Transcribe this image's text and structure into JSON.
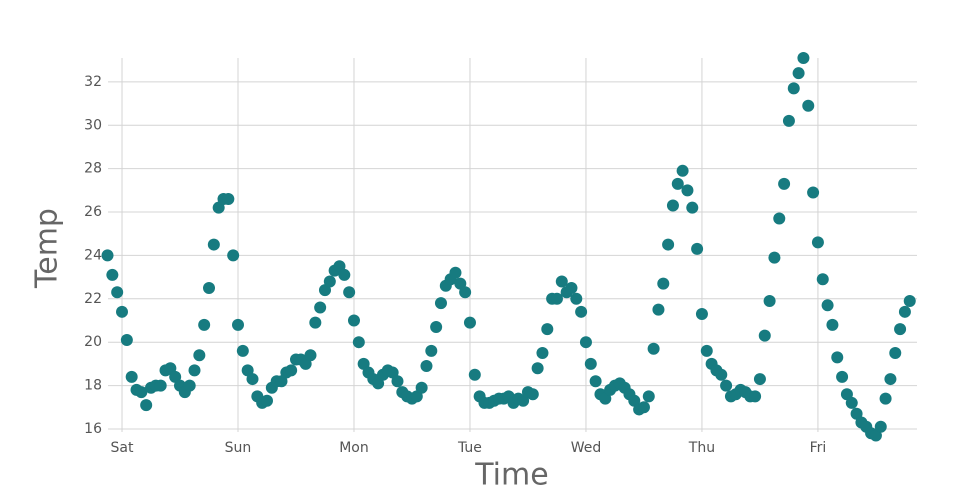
{
  "chart_data": {
    "type": "scatter",
    "x_label": "Time",
    "y_label": "Temp",
    "color": "#177b80",
    "grid": true,
    "xlim": [
      -2.9,
      164.5
    ],
    "ylim": [
      15.86,
      33.1
    ],
    "xticks": [
      {
        "value": 0,
        "label": "Sat"
      },
      {
        "value": 24,
        "label": "Sun"
      },
      {
        "value": 48,
        "label": "Mon"
      },
      {
        "value": 72,
        "label": "Tue"
      },
      {
        "value": 96,
        "label": "Wed"
      },
      {
        "value": 120,
        "label": "Thu"
      },
      {
        "value": 144,
        "label": "Fri"
      }
    ],
    "yticks": [
      16,
      18,
      20,
      22,
      24,
      26,
      28,
      30,
      32
    ],
    "x": [
      -3,
      -2,
      -1,
      0,
      1,
      2,
      3,
      4,
      5,
      6,
      7,
      8,
      9,
      10,
      11,
      12,
      13,
      14,
      15,
      16,
      17,
      18,
      19,
      20,
      21,
      22,
      23,
      24,
      25,
      26,
      27,
      28,
      29,
      30,
      31,
      32,
      33,
      34,
      35,
      36,
      37,
      38,
      39,
      40,
      41,
      42,
      43,
      44,
      45,
      46,
      47,
      48,
      49,
      50,
      51,
      52,
      53,
      54,
      55,
      56,
      57,
      58,
      59,
      60,
      61,
      62,
      63,
      64,
      65,
      66,
      67,
      68,
      69,
      70,
      71,
      72,
      73,
      74,
      75,
      76,
      77,
      78,
      79,
      80,
      81,
      82,
      83,
      84,
      85,
      86,
      87,
      88,
      89,
      90,
      91,
      92,
      93,
      94,
      95,
      96,
      97,
      98,
      99,
      100,
      101,
      102,
      103,
      104,
      105,
      106,
      107,
      108,
      109,
      110,
      111,
      112,
      113,
      114,
      115,
      116,
      117,
      118,
      119,
      120,
      121,
      122,
      123,
      124,
      125,
      126,
      127,
      128,
      129,
      130,
      131,
      132,
      133,
      134,
      135,
      136,
      137,
      138,
      139,
      140,
      141,
      142,
      143,
      144,
      145,
      146,
      147,
      148,
      149,
      150,
      151,
      152,
      153,
      154,
      155,
      156,
      157,
      158,
      159,
      160,
      161,
      162,
      163
    ],
    "values": [
      24.0,
      23.1,
      22.3,
      21.4,
      20.1,
      18.4,
      17.8,
      17.7,
      17.1,
      17.9,
      18.0,
      18.0,
      18.7,
      18.8,
      18.4,
      18.0,
      17.7,
      18.0,
      18.7,
      19.4,
      20.8,
      22.5,
      24.5,
      26.2,
      26.6,
      26.6,
      24.0,
      20.8,
      19.6,
      18.7,
      18.3,
      17.5,
      17.2,
      17.3,
      17.9,
      18.2,
      18.2,
      18.6,
      18.7,
      19.2,
      19.2,
      19.0,
      19.4,
      20.9,
      21.6,
      22.4,
      22.8,
      23.3,
      23.5,
      23.1,
      22.3,
      21.0,
      20.0,
      19.0,
      18.6,
      18.3,
      18.1,
      18.5,
      18.7,
      18.6,
      18.2,
      17.7,
      17.5,
      17.4,
      17.5,
      17.9,
      18.9,
      19.6,
      20.7,
      21.8,
      22.6,
      22.9,
      23.2,
      22.7,
      22.3,
      20.9,
      18.5,
      17.5,
      17.2,
      17.2,
      17.3,
      17.4,
      17.4,
      17.5,
      17.2,
      17.4,
      17.3,
      17.7,
      17.6,
      18.8,
      19.5,
      20.6,
      22.0,
      22.0,
      22.8,
      22.3,
      22.5,
      22.0,
      21.4,
      20.0,
      19.0,
      18.2,
      17.6,
      17.4,
      17.8,
      18.0,
      18.1,
      17.9,
      17.6,
      17.3,
      16.9,
      17.0,
      17.5,
      19.7,
      21.5,
      22.7,
      24.5,
      26.3,
      27.3,
      27.9,
      27.0,
      26.2,
      24.3,
      21.3,
      19.6,
      19.0,
      18.7,
      18.5,
      18.0,
      17.5,
      17.6,
      17.8,
      17.7,
      17.5,
      17.5,
      18.3,
      20.3,
      21.9,
      23.9,
      25.7,
      27.3,
      30.2,
      31.7,
      32.4,
      33.1,
      30.9,
      26.9,
      24.6,
      22.9,
      21.7,
      20.8,
      19.3,
      18.4,
      17.6,
      17.2,
      16.7,
      16.3,
      16.1,
      15.8,
      15.7,
      16.1,
      17.4,
      18.3,
      19.5,
      20.6,
      21.4,
      21.9
    ]
  }
}
